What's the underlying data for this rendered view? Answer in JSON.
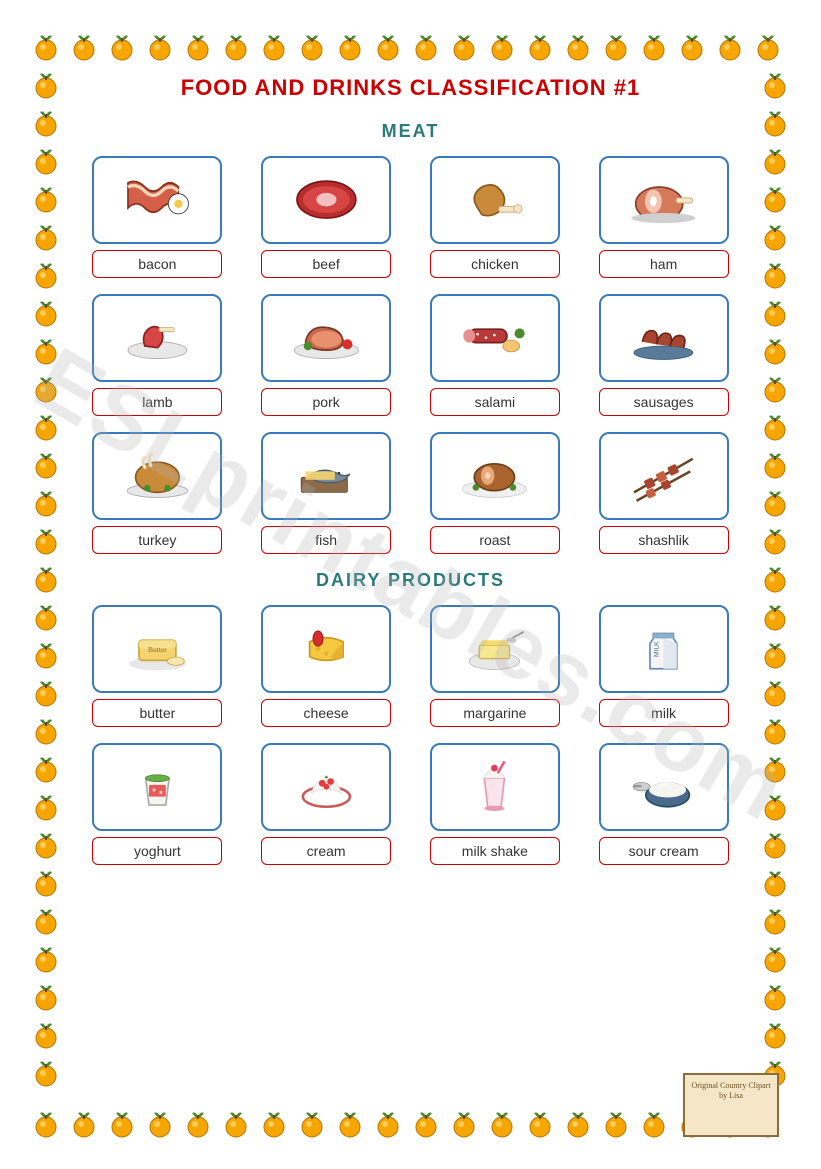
{
  "title": "FOOD AND DRINKS CLASSIFICATION #1",
  "watermark": "ESLprintables.com",
  "credit": "Original Country Clipart by Lisa",
  "colors": {
    "title": "#cc0000",
    "section": "#2a7a7a",
    "imgBorder": "#3a7ab8",
    "labelBorder": "#cc0000",
    "fruitMain": "#f7a600",
    "fruitLeaf": "#4a8b2a",
    "background": "#ffffff"
  },
  "sections": [
    {
      "heading": "MEAT",
      "items": [
        {
          "label": "bacon",
          "icon": "bacon"
        },
        {
          "label": "beef",
          "icon": "beef"
        },
        {
          "label": "chicken",
          "icon": "chicken"
        },
        {
          "label": "ham",
          "icon": "ham"
        },
        {
          "label": "lamb",
          "icon": "lamb"
        },
        {
          "label": "pork",
          "icon": "pork"
        },
        {
          "label": "salami",
          "icon": "salami"
        },
        {
          "label": "sausages",
          "icon": "sausages"
        },
        {
          "label": "turkey",
          "icon": "turkey"
        },
        {
          "label": "fish",
          "icon": "fish"
        },
        {
          "label": "roast",
          "icon": "roast"
        },
        {
          "label": "shashlik",
          "icon": "shashlik"
        }
      ]
    },
    {
      "heading": "DAIRY PRODUCTS",
      "items": [
        {
          "label": "butter",
          "icon": "butter"
        },
        {
          "label": "cheese",
          "icon": "cheese"
        },
        {
          "label": "margarine",
          "icon": "margarine"
        },
        {
          "label": "milk",
          "icon": "milk"
        },
        {
          "label": "yoghurt",
          "icon": "yoghurt"
        },
        {
          "label": "cream",
          "icon": "cream"
        },
        {
          "label": "milk shake",
          "icon": "milkshake"
        },
        {
          "label": "sour cream",
          "icon": "sourcream"
        }
      ]
    }
  ],
  "border": {
    "fruitCount": 76,
    "fruitSize": 32
  }
}
